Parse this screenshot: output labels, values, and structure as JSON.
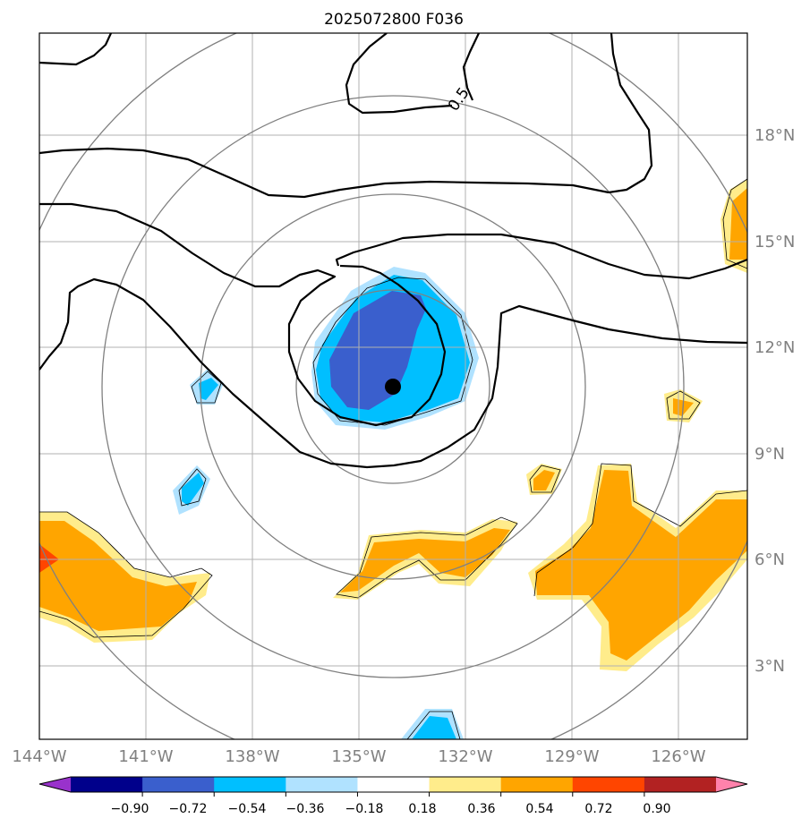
{
  "title": "2025072800 F036",
  "map": {
    "lon_ticks": [
      "144°W",
      "141°W",
      "138°W",
      "135°W",
      "132°W",
      "129°W",
      "126°W"
    ],
    "lat_ticks": [
      "3°N",
      "6°N",
      "9°N",
      "12°N",
      "15°N",
      "18°N"
    ],
    "contour_label": "0.5",
    "tick_color": "#808080",
    "grid_color": "#b0b0b0",
    "ring_color": "#808080",
    "storm_center_marker": "black dot"
  },
  "colorbar": {
    "ticks": [
      "−0.90",
      "−0.72",
      "−0.54",
      "−0.36",
      "−0.18",
      "0.18",
      "0.36",
      "0.54",
      "0.72",
      "0.90"
    ],
    "colors": [
      "#9932cc",
      "#00008b",
      "#3a5fcd",
      "#00bfff",
      "#b0e2ff",
      "#ffffff",
      "#ffec8b",
      "#ffa500",
      "#ff4500",
      "#b22222",
      "#ff82ab"
    ]
  }
}
